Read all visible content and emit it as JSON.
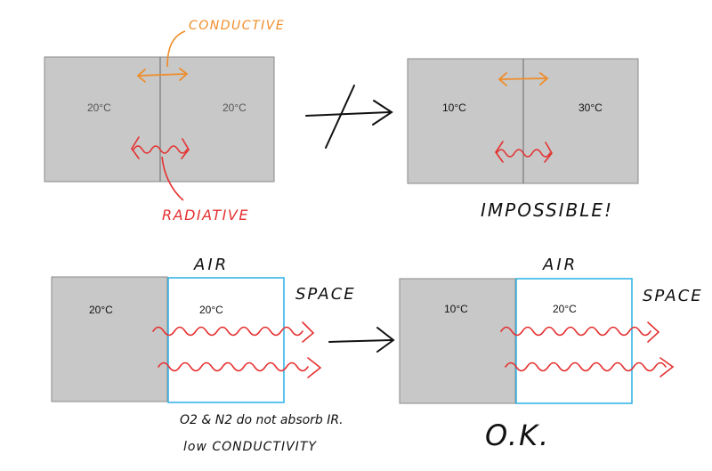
{
  "top_left": {
    "left_temp": "20°C",
    "right_temp": "20°C",
    "conductive_label": "CONDUCTIVE",
    "radiative_label": "RADIATIVE"
  },
  "top_right": {
    "left_temp": "10°C",
    "right_temp": "30°C",
    "verdict": "IMPOSSIBLE!"
  },
  "bottom_left": {
    "air_label": "AIR",
    "space_label": "SPACE",
    "block_temp": "20°C",
    "air_temp": "20°C",
    "note_line1": "O2 & N2 do not absorb IR.",
    "note_line2": "low CONDUCTIVITY"
  },
  "bottom_right": {
    "air_label": "AIR",
    "space_label": "SPACE",
    "block_temp": "10°C",
    "air_temp": "20°C",
    "verdict": "O.K."
  },
  "colors": {
    "block_fill": "#c8c8c8",
    "block_stroke": "#8a8a8a",
    "conductive": "#f08c28",
    "radiative": "#e53030",
    "air_box": "#35b5e8",
    "ink": "#111111"
  }
}
